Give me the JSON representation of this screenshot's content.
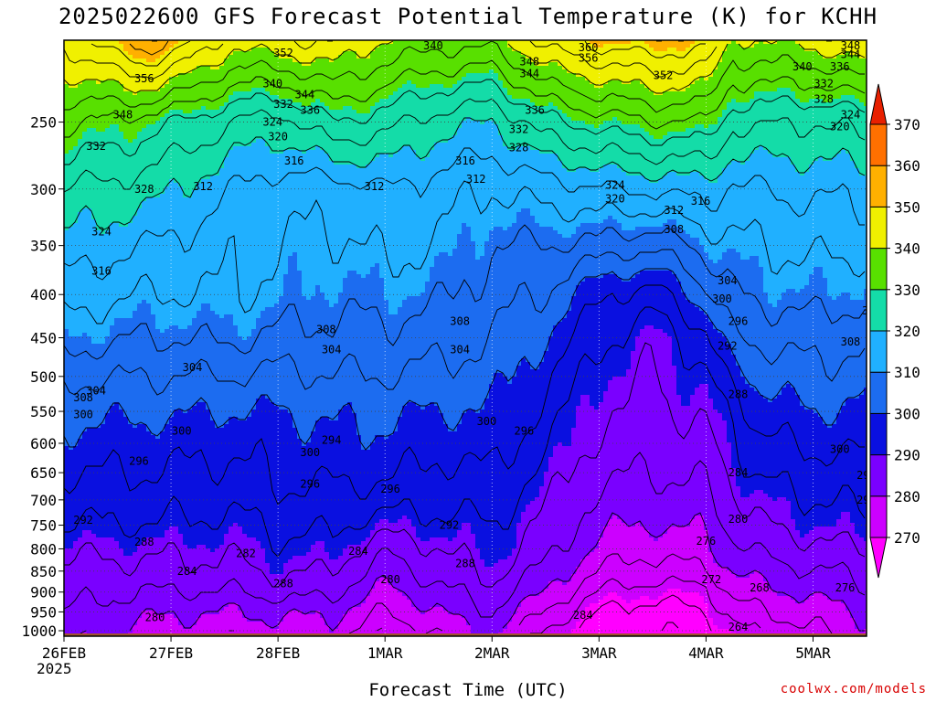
{
  "chart_data": {
    "type": "heatmap",
    "title": "2025022600 GFS Forecast Potential Temperature (K) for KCHH",
    "xlabel": "Forecast Time (UTC)",
    "x_sublabel": "2025",
    "ylabel": "",
    "y_scale": "pressure (log), inverted",
    "y_unit": "hPa",
    "y_ticks": [
      250,
      300,
      350,
      400,
      450,
      500,
      550,
      600,
      650,
      700,
      750,
      800,
      850,
      900,
      950,
      1000
    ],
    "ylim": [
      1015,
      200
    ],
    "x_ticks": [
      "26FEB",
      "27FEB",
      "28FEB",
      "1MAR",
      "2MAR",
      "3MAR",
      "4MAR",
      "5MAR"
    ],
    "xlim_days": [
      0,
      7.5
    ],
    "grid": true,
    "colorbar": {
      "label": "K",
      "ticks": [
        270,
        280,
        290,
        300,
        310,
        320,
        330,
        340,
        350,
        360,
        370
      ],
      "bands": [
        {
          "from": 265,
          "to": 270,
          "color": "#ff00ff"
        },
        {
          "from": 270,
          "to": 280,
          "color": "#cc00ff"
        },
        {
          "from": 280,
          "to": 290,
          "color": "#7a00ff"
        },
        {
          "from": 290,
          "to": 300,
          "color": "#0a10e0"
        },
        {
          "from": 300,
          "to": 310,
          "color": "#1c6cf0"
        },
        {
          "from": 310,
          "to": 320,
          "color": "#20b0ff"
        },
        {
          "from": 320,
          "to": 330,
          "color": "#14dca8"
        },
        {
          "from": 330,
          "to": 340,
          "color": "#58e000"
        },
        {
          "from": 340,
          "to": 350,
          "color": "#f0f000"
        },
        {
          "from": 350,
          "to": 360,
          "color": "#ffb000"
        },
        {
          "from": 360,
          "to": 370,
          "color": "#ff7000"
        },
        {
          "from": 370,
          "to": 380,
          "color": "#e82000"
        }
      ]
    },
    "contour_interval_K": 4,
    "contour_labels": [
      {
        "value": 264,
        "day": 6.3,
        "p": 990
      },
      {
        "value": 268,
        "day": 6.5,
        "p": 890
      },
      {
        "value": 272,
        "day": 6.05,
        "p": 870
      },
      {
        "value": 276,
        "day": 6.0,
        "p": 783
      },
      {
        "value": 276,
        "day": 7.3,
        "p": 890
      },
      {
        "value": 280,
        "day": 0.85,
        "p": 965
      },
      {
        "value": 280,
        "day": 3.05,
        "p": 870
      },
      {
        "value": 280,
        "day": 6.3,
        "p": 738
      },
      {
        "value": 280,
        "day": 7.6,
        "p": 858
      },
      {
        "value": 282,
        "day": 1.7,
        "p": 810
      },
      {
        "value": 284,
        "day": 1.15,
        "p": 850
      },
      {
        "value": 284,
        "day": 2.75,
        "p": 805
      },
      {
        "value": 284,
        "day": 4.85,
        "p": 958
      },
      {
        "value": 284,
        "day": 6.3,
        "p": 650
      },
      {
        "value": 284,
        "day": 7.6,
        "p": 790
      },
      {
        "value": 288,
        "day": 0.75,
        "p": 785
      },
      {
        "value": 288,
        "day": 2.05,
        "p": 880
      },
      {
        "value": 288,
        "day": 3.75,
        "p": 833
      },
      {
        "value": 288,
        "day": 6.3,
        "p": 525
      },
      {
        "value": 288,
        "day": 7.6,
        "p": 770
      },
      {
        "value": 292,
        "day": 0.18,
        "p": 740
      },
      {
        "value": 292,
        "day": 3.6,
        "p": 750
      },
      {
        "value": 292,
        "day": 6.2,
        "p": 460
      },
      {
        "value": 292,
        "day": 7.5,
        "p": 700
      },
      {
        "value": 294,
        "day": 2.5,
        "p": 595
      },
      {
        "value": 296,
        "day": 0.7,
        "p": 630
      },
      {
        "value": 296,
        "day": 2.3,
        "p": 670
      },
      {
        "value": 296,
        "day": 3.05,
        "p": 680
      },
      {
        "value": 296,
        "day": 4.3,
        "p": 580
      },
      {
        "value": 296,
        "day": 6.3,
        "p": 430
      },
      {
        "value": 296,
        "day": 7.5,
        "p": 655
      },
      {
        "value": 300,
        "day": 0.18,
        "p": 555
      },
      {
        "value": 300,
        "day": 1.1,
        "p": 580
      },
      {
        "value": 300,
        "day": 2.3,
        "p": 615
      },
      {
        "value": 300,
        "day": 3.95,
        "p": 565
      },
      {
        "value": 300,
        "day": 6.15,
        "p": 405
      },
      {
        "value": 300,
        "day": 7.25,
        "p": 610
      },
      {
        "value": 304,
        "day": 0.3,
        "p": 520
      },
      {
        "value": 304,
        "day": 1.2,
        "p": 488
      },
      {
        "value": 304,
        "day": 2.5,
        "p": 465
      },
      {
        "value": 304,
        "day": 3.7,
        "p": 465
      },
      {
        "value": 304,
        "day": 6.2,
        "p": 385
      },
      {
        "value": 304,
        "day": 7.6,
        "p": 570
      },
      {
        "value": 308,
        "day": 0.18,
        "p": 530
      },
      {
        "value": 308,
        "day": 2.45,
        "p": 440
      },
      {
        "value": 308,
        "day": 3.7,
        "p": 430
      },
      {
        "value": 308,
        "day": 5.7,
        "p": 335
      },
      {
        "value": 308,
        "day": 7.35,
        "p": 455
      },
      {
        "value": 312,
        "day": 1.3,
        "p": 298
      },
      {
        "value": 312,
        "day": 2.9,
        "p": 298
      },
      {
        "value": 312,
        "day": 3.85,
        "p": 292
      },
      {
        "value": 312,
        "day": 5.7,
        "p": 318
      },
      {
        "value": 312,
        "day": 7.55,
        "p": 418
      },
      {
        "value": 316,
        "day": 0.35,
        "p": 375
      },
      {
        "value": 316,
        "day": 2.15,
        "p": 278
      },
      {
        "value": 316,
        "day": 3.75,
        "p": 278
      },
      {
        "value": 316,
        "day": 5.95,
        "p": 310
      },
      {
        "value": 316,
        "day": 7.65,
        "p": 298
      },
      {
        "value": 320,
        "day": 2.0,
        "p": 260
      },
      {
        "value": 320,
        "day": 5.15,
        "p": 308
      },
      {
        "value": 320,
        "day": 7.25,
        "p": 253
      },
      {
        "value": 324,
        "day": 0.35,
        "p": 337
      },
      {
        "value": 324,
        "day": 1.95,
        "p": 250
      },
      {
        "value": 324,
        "day": 5.15,
        "p": 297
      },
      {
        "value": 324,
        "day": 7.35,
        "p": 245
      },
      {
        "value": 328,
        "day": 0.75,
        "p": 300
      },
      {
        "value": 328,
        "day": 4.25,
        "p": 268
      },
      {
        "value": 328,
        "day": 7.1,
        "p": 235
      },
      {
        "value": 332,
        "day": 0.3,
        "p": 267
      },
      {
        "value": 332,
        "day": 2.05,
        "p": 238
      },
      {
        "value": 332,
        "day": 4.25,
        "p": 255
      },
      {
        "value": 332,
        "day": 7.1,
        "p": 225
      },
      {
        "value": 336,
        "day": 2.3,
        "p": 242
      },
      {
        "value": 336,
        "day": 4.4,
        "p": 242
      },
      {
        "value": 336,
        "day": 7.25,
        "p": 215
      },
      {
        "value": 340,
        "day": 1.95,
        "p": 225
      },
      {
        "value": 340,
        "day": 3.45,
        "p": 203
      },
      {
        "value": 340,
        "day": 6.9,
        "p": 215
      },
      {
        "value": 344,
        "day": 2.25,
        "p": 232
      },
      {
        "value": 344,
        "day": 4.35,
        "p": 219
      },
      {
        "value": 344,
        "day": 7.35,
        "p": 208
      },
      {
        "value": 348,
        "day": 0.55,
        "p": 245
      },
      {
        "value": 348,
        "day": 4.35,
        "p": 212
      },
      {
        "value": 348,
        "day": 7.35,
        "p": 203
      },
      {
        "value": 352,
        "day": 2.05,
        "p": 207
      },
      {
        "value": 352,
        "day": 5.6,
        "p": 220
      },
      {
        "value": 356,
        "day": 0.75,
        "p": 222
      },
      {
        "value": 356,
        "day": 4.9,
        "p": 210
      },
      {
        "value": 360,
        "day": 4.9,
        "p": 204
      }
    ],
    "shading_model": {
      "levels_p": [
        1015,
        950,
        900,
        850,
        800,
        750,
        700,
        650,
        600,
        550,
        500,
        450,
        400,
        350,
        300,
        250,
        200
      ],
      "columns": [
        {
          "day": 0.0,
          "theta": [
            282,
            284,
            286,
            287,
            289,
            292,
            294,
            296,
            299,
            301,
            305,
            310,
            314,
            319,
            324,
            333,
            345
          ]
        },
        {
          "day": 0.8,
          "theta": [
            278,
            281,
            284,
            287,
            289,
            292,
            294,
            296,
            298,
            301,
            304,
            308,
            312,
            316,
            322,
            330,
            356
          ]
        },
        {
          "day": 1.6,
          "theta": [
            277,
            280,
            284,
            287,
            289,
            291,
            293,
            295,
            297,
            300,
            304,
            309,
            312,
            313,
            316,
            324,
            342
          ]
        },
        {
          "day": 2.0,
          "theta": [
            278,
            281,
            286,
            289,
            291,
            293,
            295,
            297,
            298,
            300,
            303,
            307,
            311,
            312,
            314,
            322,
            344
          ]
        },
        {
          "day": 2.5,
          "theta": [
            278,
            281,
            285,
            288,
            291,
            293,
            295,
            297,
            299,
            301,
            304,
            307,
            309,
            311,
            314,
            328,
            345
          ]
        },
        {
          "day": 3.0,
          "theta": [
            272,
            276,
            279,
            282,
            285,
            290,
            294,
            297,
            299,
            301,
            304,
            307,
            310,
            313,
            316,
            326,
            340
          ]
        },
        {
          "day": 3.5,
          "theta": [
            276,
            280,
            283,
            286,
            288,
            291,
            293,
            295,
            297,
            300,
            303,
            306,
            309,
            312,
            314,
            322,
            338
          ]
        },
        {
          "day": 4.0,
          "theta": [
            281,
            284,
            287,
            289,
            291,
            292,
            294,
            296,
            298,
            300,
            302,
            304,
            306,
            308,
            312,
            320,
            338
          ]
        },
        {
          "day": 4.5,
          "theta": [
            270,
            276,
            280,
            283,
            286,
            287,
            289,
            291,
            293,
            295,
            297,
            300,
            304,
            308,
            314,
            327,
            346
          ]
        },
        {
          "day": 5.0,
          "theta": [
            266,
            268,
            272,
            276,
            279,
            281,
            283,
            285,
            287,
            288,
            290,
            293,
            297,
            307,
            316,
            330,
            350
          ]
        },
        {
          "day": 5.5,
          "theta": [
            264,
            266,
            270,
            274,
            277,
            280,
            282,
            284,
            286,
            287,
            288,
            289,
            294,
            305,
            317,
            332,
            352
          ]
        },
        {
          "day": 6.0,
          "theta": [
            265,
            268,
            271,
            276,
            279,
            281,
            283,
            285,
            287,
            289,
            291,
            295,
            303,
            310,
            318,
            332,
            350
          ]
        },
        {
          "day": 6.25,
          "theta": [
            270,
            274,
            277,
            280,
            283,
            285,
            287,
            289,
            291,
            293,
            298,
            304,
            308,
            311,
            315,
            325,
            340
          ]
        },
        {
          "day": 6.5,
          "theta": [
            272,
            276,
            279,
            282,
            285,
            288,
            290,
            293,
            295,
            298,
            301,
            305,
            309,
            312,
            316,
            325,
            340
          ]
        },
        {
          "day": 7.0,
          "theta": [
            275,
            278,
            281,
            284,
            287,
            290,
            292,
            294,
            297,
            300,
            303,
            306,
            310,
            313,
            317,
            324,
            342
          ]
        },
        {
          "day": 7.5,
          "theta": [
            278,
            281,
            283,
            285,
            288,
            291,
            293,
            295,
            297,
            299,
            302,
            305,
            309,
            313,
            317,
            326,
            345
          ]
        }
      ]
    }
  },
  "credit": "coolwx.com/models"
}
